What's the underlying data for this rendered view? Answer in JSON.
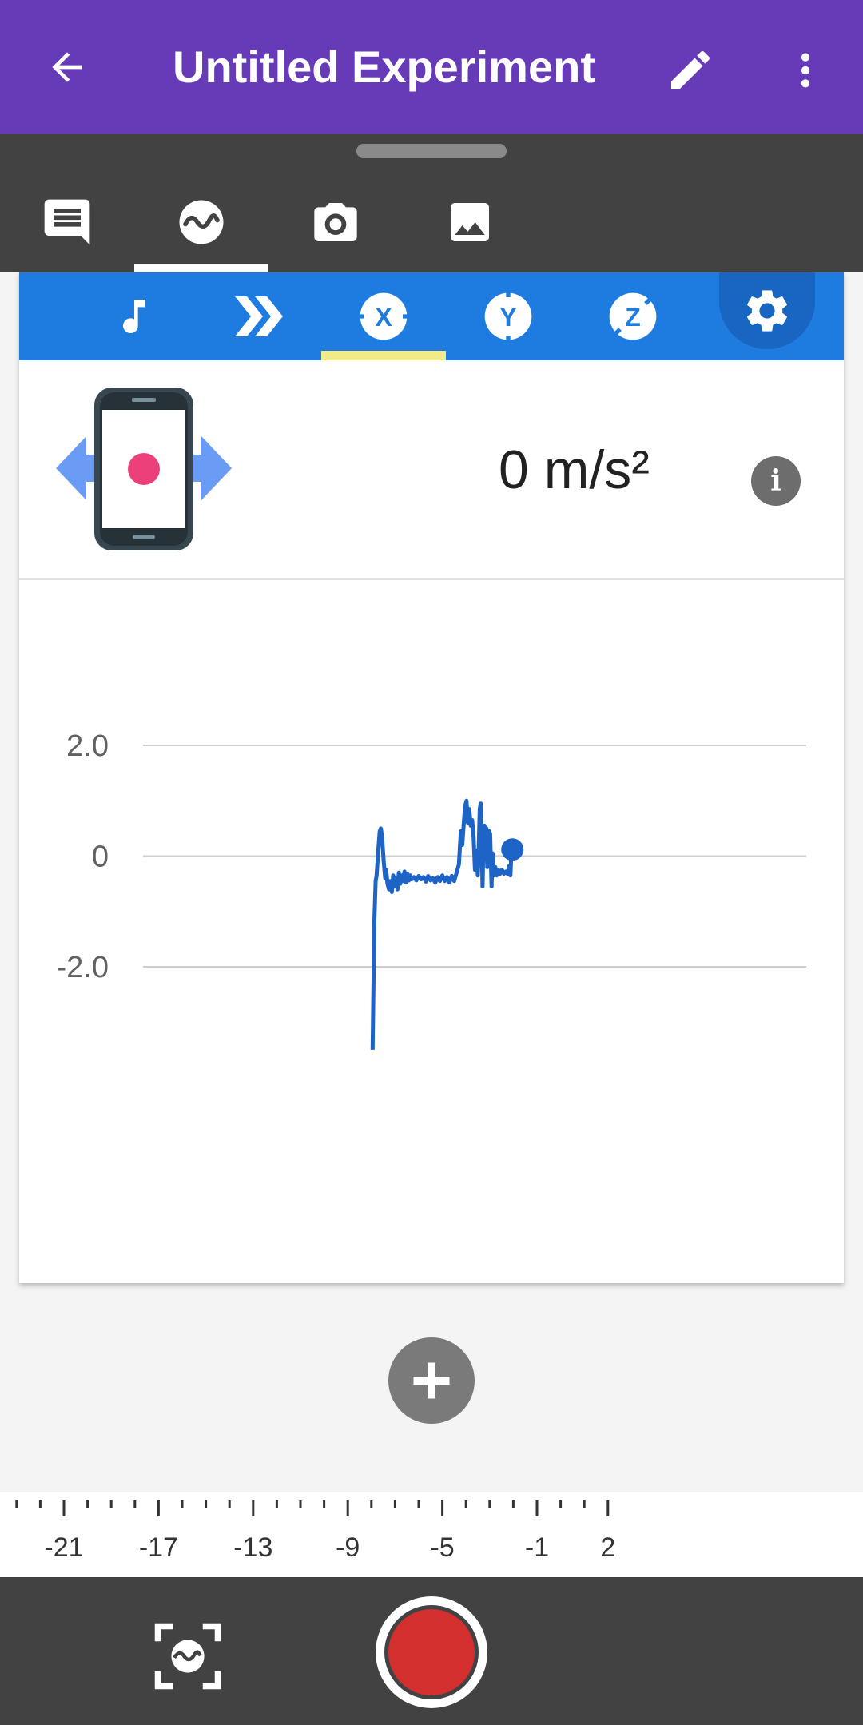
{
  "appbar": {
    "title": "Untitled Experiment",
    "color": "#673ab7"
  },
  "tools": [
    {
      "name": "notes-icon",
      "active": false
    },
    {
      "name": "sensor-wave-icon",
      "active": true
    },
    {
      "name": "camera-icon",
      "active": false
    },
    {
      "name": "gallery-icon",
      "active": false
    }
  ],
  "sensor_tabs": [
    {
      "name": "sound-icon",
      "active": false
    },
    {
      "name": "linear-accel-icon",
      "active": false
    },
    {
      "name": "accel-x-icon",
      "letter": "X",
      "active": true
    },
    {
      "name": "accel-y-icon",
      "letter": "Y",
      "active": false
    },
    {
      "name": "accel-z-icon",
      "letter": "Z",
      "active": false
    }
  ],
  "sensor": {
    "reading": "0 m/s²",
    "accent": "#1e7be0"
  },
  "chart_data": {
    "type": "line",
    "y_tick_labels": [
      "2.0",
      "0",
      "-2.0"
    ],
    "y_ticks": [
      2.0,
      0,
      -2.0
    ],
    "ylim": [
      -3.7,
      2.6
    ],
    "grid": true,
    "series": [
      {
        "color": "#1e63c6",
        "points": [
          [
            -7.95,
            -3.5
          ],
          [
            -7.88,
            -1.2
          ],
          [
            -7.82,
            -0.45
          ],
          [
            -7.78,
            -0.35
          ],
          [
            -7.72,
            0.05
          ],
          [
            -7.65,
            0.45
          ],
          [
            -7.6,
            0.5
          ],
          [
            -7.55,
            0.35
          ],
          [
            -7.48,
            -0.1
          ],
          [
            -7.42,
            -0.4
          ],
          [
            -7.38,
            -0.25
          ],
          [
            -7.32,
            -0.5
          ],
          [
            -7.26,
            -0.6
          ],
          [
            -7.2,
            -0.45
          ],
          [
            -7.14,
            -0.65
          ],
          [
            -7.08,
            -0.35
          ],
          [
            -7.02,
            -0.55
          ],
          [
            -6.96,
            -0.4
          ],
          [
            -6.9,
            -0.6
          ],
          [
            -6.84,
            -0.3
          ],
          [
            -6.78,
            -0.5
          ],
          [
            -6.72,
            -0.35
          ],
          [
            -6.66,
            -0.45
          ],
          [
            -6.6,
            -0.28
          ],
          [
            -6.54,
            -0.48
          ],
          [
            -6.48,
            -0.32
          ],
          [
            -6.42,
            -0.44
          ],
          [
            -6.36,
            -0.35
          ],
          [
            -6.3,
            -0.42
          ],
          [
            -6.2,
            -0.38
          ],
          [
            -6.1,
            -0.44
          ],
          [
            -6.0,
            -0.36
          ],
          [
            -5.9,
            -0.42
          ],
          [
            -5.8,
            -0.38
          ],
          [
            -5.7,
            -0.46
          ],
          [
            -5.6,
            -0.36
          ],
          [
            -5.5,
            -0.44
          ],
          [
            -5.4,
            -0.4
          ],
          [
            -5.3,
            -0.48
          ],
          [
            -5.2,
            -0.38
          ],
          [
            -5.1,
            -0.45
          ],
          [
            -5.0,
            -0.35
          ],
          [
            -4.9,
            -0.45
          ],
          [
            -4.8,
            -0.38
          ],
          [
            -4.7,
            -0.48
          ],
          [
            -4.6,
            -0.36
          ],
          [
            -4.5,
            -0.45
          ],
          [
            -4.4,
            -0.3
          ],
          [
            -4.3,
            -0.15
          ],
          [
            -4.22,
            0.45
          ],
          [
            -4.16,
            0.2
          ],
          [
            -4.1,
            0.55
          ],
          [
            -4.04,
            0.9
          ],
          [
            -3.98,
            1.0
          ],
          [
            -3.92,
            0.6
          ],
          [
            -3.86,
            0.85
          ],
          [
            -3.8,
            0.55
          ],
          [
            -3.74,
            0.65
          ],
          [
            -3.68,
            0.35
          ],
          [
            -3.62,
            -0.25
          ],
          [
            -3.56,
            0.1
          ],
          [
            -3.5,
            -0.35
          ],
          [
            -3.46,
            0.2
          ],
          [
            -3.42,
            0.85
          ],
          [
            -3.38,
            0.95
          ],
          [
            -3.34,
            0.3
          ],
          [
            -3.3,
            -0.55
          ],
          [
            -3.26,
            0.25
          ],
          [
            -3.22,
            0.55
          ],
          [
            -3.18,
            0.35
          ],
          [
            -3.14,
            0.5
          ],
          [
            -3.1,
            -0.2
          ],
          [
            -3.06,
            0.2
          ],
          [
            -3.02,
            0.45
          ],
          [
            -2.98,
            0.4
          ],
          [
            -2.92,
            -0.55
          ],
          [
            -2.88,
            0.05
          ],
          [
            -2.82,
            -0.35
          ],
          [
            -2.76,
            -0.2
          ],
          [
            -2.7,
            -0.35
          ],
          [
            -2.64,
            -0.25
          ],
          [
            -2.56,
            -0.32
          ],
          [
            -2.48,
            -0.25
          ],
          [
            -2.4,
            -0.32
          ],
          [
            -2.32,
            -0.28
          ],
          [
            -2.24,
            -0.32
          ],
          [
            -2.18,
            -0.18
          ],
          [
            -2.12,
            -0.35
          ],
          [
            -2.08,
            0.1
          ],
          [
            -2.04,
            0.12
          ]
        ]
      }
    ]
  },
  "time_axis": {
    "labels": [
      "-21",
      "-17",
      "-13",
      "-9",
      "-5",
      "-1",
      "2"
    ],
    "values": [
      -21,
      -17,
      -13,
      -9,
      -5,
      -1,
      2
    ]
  }
}
